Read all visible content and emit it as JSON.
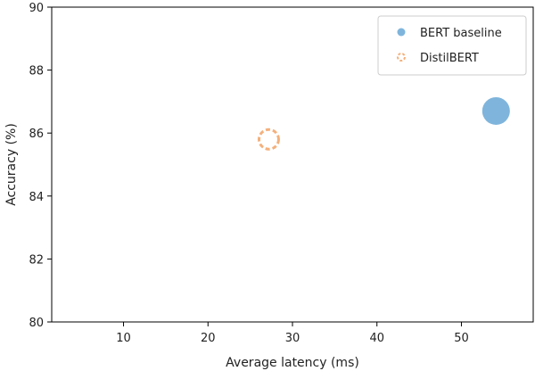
{
  "chart_data": {
    "type": "scatter",
    "title": "",
    "xlabel": "Average latency (ms)",
    "ylabel": "Accuracy (%)",
    "xlim": [
      1.5,
      58.5
    ],
    "ylim": [
      80,
      90
    ],
    "xticks": [
      10,
      20,
      30,
      40,
      50
    ],
    "yticks": [
      80,
      82,
      84,
      86,
      88,
      90
    ],
    "grid": false,
    "legend_position": "top-right",
    "series": [
      {
        "name": "BERT baseline",
        "color": "#7fb5dc",
        "marker": "filled-circle",
        "points": [
          {
            "x": 54.1,
            "y": 86.7
          }
        ]
      },
      {
        "name": "DistilBERT",
        "color": "#f4b07c",
        "marker": "dashed-hollow-circle",
        "points": [
          {
            "x": 27.2,
            "y": 85.8
          }
        ]
      }
    ]
  }
}
